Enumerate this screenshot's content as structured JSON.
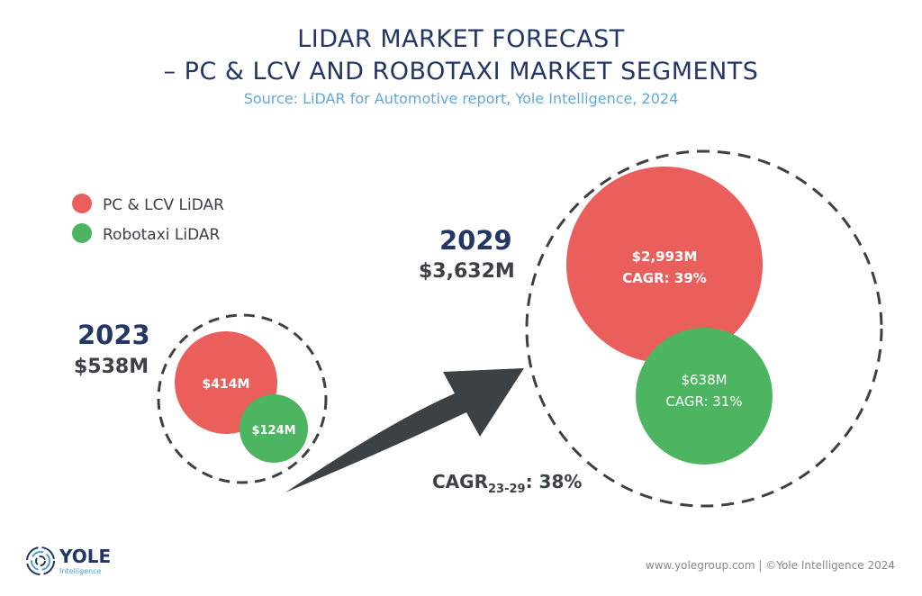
{
  "header": {
    "title_line1": "LIDAR MARKET FORECAST",
    "title_line2": "– PC & LCV AND ROBOTAXI MARKET SEGMENTS",
    "source": "Source: LiDAR for Automotive report, Yole Intelligence, 2024"
  },
  "colors": {
    "pc_lcv": "#ea5f5b",
    "robotaxi": "#4db462",
    "title": "#243663",
    "arrow": "#3c4146"
  },
  "chart_data": {
    "type": "bubble",
    "title": "LIDAR MARKET FORECAST – PC & LCV AND ROBOTAXI MARKET SEGMENTS",
    "legend": [
      "PC & LCV LiDAR",
      "Robotaxi LiDAR"
    ],
    "legend_placement": "top-left",
    "years": [
      {
        "year": "2023",
        "total": "$538M",
        "total_value": 538,
        "segments": [
          {
            "name": "PC & LCV LiDAR",
            "value": 414,
            "label": "$414M"
          },
          {
            "name": "Robotaxi LiDAR",
            "value": 124,
            "label": "$124M"
          }
        ]
      },
      {
        "year": "2029",
        "total": "$3,632M",
        "total_value": 3632,
        "segments": [
          {
            "name": "PC & LCV LiDAR",
            "value": 2993,
            "label": "$2,993M",
            "cagr": "CAGR: 39%"
          },
          {
            "name": "Robotaxi LiDAR",
            "value": 638,
            "label": "$638M",
            "cagr": "CAGR: 31%"
          }
        ]
      }
    ],
    "overall_cagr": {
      "prefix": "CAGR",
      "sub": "23-29",
      "value": ": 38%"
    },
    "unit": "M"
  },
  "footer": {
    "logo_word": "YOLE",
    "logo_sub": "Intelligence",
    "credit": "www.yolegroup.com | ©Yole Intelligence 2024"
  }
}
